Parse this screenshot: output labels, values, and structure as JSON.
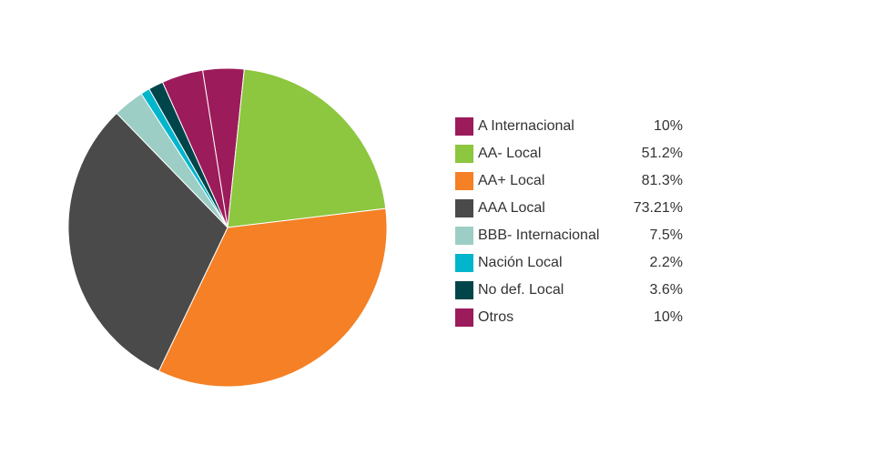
{
  "chart_data": {
    "type": "pie",
    "title": "",
    "legend_position": "right",
    "slices": [
      {
        "label": "A Internacional",
        "value": 10,
        "value_label": "10%",
        "color": "#9c1b5b"
      },
      {
        "label": "AA- Local",
        "value": 51.2,
        "value_label": "51.2%",
        "color": "#8dc63f"
      },
      {
        "label": "AA+ Local",
        "value": 81.3,
        "value_label": "81.3%",
        "color": "#f58025"
      },
      {
        "label": "AAA Local",
        "value": 73.21,
        "value_label": "73.21%",
        "color": "#4a4a4a"
      },
      {
        "label": "BBB- Internacional",
        "value": 7.5,
        "value_label": "7.5%",
        "color": "#9dcec5"
      },
      {
        "label": "Nación Local",
        "value": 2.2,
        "value_label": "2.2%",
        "color": "#00b5cc"
      },
      {
        "label": "No def. Local",
        "value": 3.6,
        "value_label": "3.6%",
        "color": "#00454a"
      },
      {
        "label": "Otros",
        "value": 10,
        "value_label": "10%",
        "color": "#9c1b5b"
      }
    ]
  }
}
